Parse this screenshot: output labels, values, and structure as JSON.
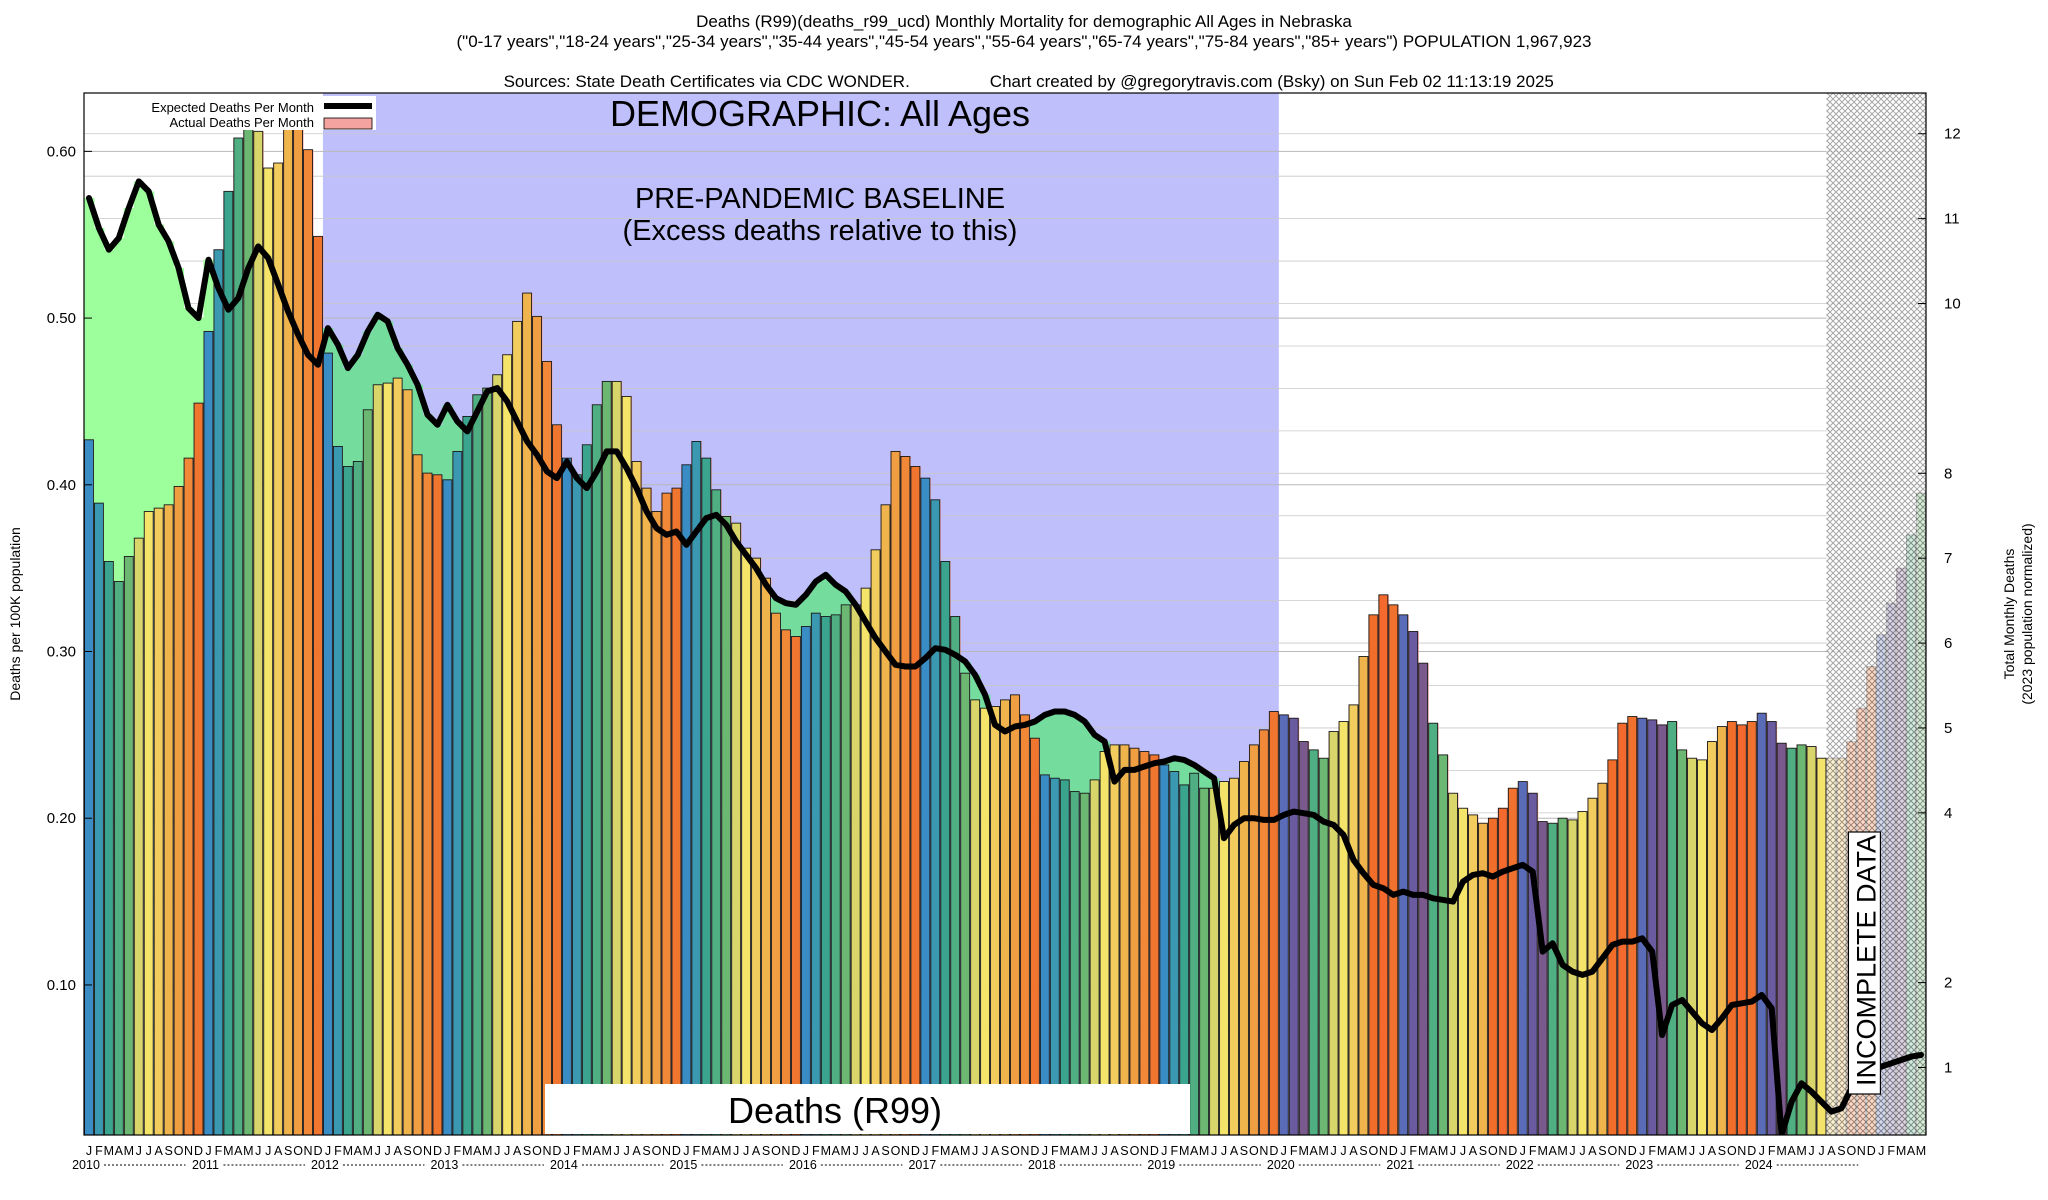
{
  "header": {
    "title_line1": "Deaths (R99)(deaths_r99_ucd) Monthly Mortality for demographic All Ages in Nebraska",
    "title_line2": "(\"0-17 years\",\"18-24 years\",\"25-34 years\",\"35-44 years\",\"45-54 years\",\"55-64 years\",\"65-74 years\",\"75-84 years\",\"85+ years\") POPULATION 1,967,923",
    "title_line3_left": "Sources: State Death Certificates via CDC WONDER.",
    "title_line3_right": "Chart created by @gregorytravis.com (Bsky) on Sun Feb 02 11:13:19 2025"
  },
  "chart_data": {
    "type": "bar",
    "ylabel": "Deaths per 100K population",
    "y2label_line1": "Total Monthly Deaths",
    "y2label_line2": "(2023 population normalized)",
    "ylim": [
      0.01,
      0.635
    ],
    "y2lim": [
      0.205,
      12.48
    ],
    "yticks": [
      "0.10",
      "0.20",
      "0.30",
      "0.40",
      "0.50",
      "0.60"
    ],
    "y2ticks": [
      "1",
      "2",
      "4",
      "5",
      "6",
      "7",
      "8",
      "10",
      "11",
      "12"
    ],
    "y2tick_values": [
      1,
      2,
      4,
      5,
      6,
      7,
      8,
      10,
      11,
      12
    ],
    "month_letters": [
      "J",
      "F",
      "M",
      "A",
      "M",
      "J",
      "J",
      "A",
      "S",
      "O",
      "N",
      "D"
    ],
    "years": [
      "2010",
      "2011",
      "2012",
      "2013",
      "2014",
      "2015",
      "2016",
      "2017",
      "2018",
      "2019",
      "2020",
      "2021",
      "2022",
      "2023",
      "2024"
    ],
    "legend": {
      "expected_label": "Expected Deaths Per Month",
      "actual_label": "Actual Deaths Per Month",
      "placement": "top-left"
    },
    "annotations": {
      "demographic": "DEMOGRAPHIC: All Ages",
      "baseline_line1": "PRE-PANDEMIC BASELINE",
      "baseline_line2": "(Excess deaths relative to this)",
      "cause": "Deaths (R99)",
      "incomplete": "INCOMPLETE DATA"
    },
    "baseline_period": [
      "2012-01",
      "2019-12"
    ],
    "incomplete_from": "2024-08",
    "colors": {
      "baseline_band": "#bfbffc",
      "deficit_fill": "#9cff9c",
      "deficit_fill_baseline": "#74dc9c",
      "excess_fill": "#f5a3a0",
      "expected_line": "#000000",
      "hatch": "#9a9a9a",
      "season_palette": [
        "#3d8ec4",
        "#3a9aaa",
        "#3aa890",
        "#5ab47a",
        "#c8c860",
        "#f0e060",
        "#f3d060",
        "#f2b848",
        "#f0a040",
        "#5a7cc4",
        "#7a5aa0",
        "#8c6a6a",
        "#b88a50",
        "#f09040",
        "#f07838",
        "#f46a2e"
      ]
    },
    "actual": [
      0.427,
      0.389,
      0.354,
      0.342,
      0.357,
      0.368,
      0.384,
      0.386,
      0.388,
      0.399,
      0.416,
      0.449,
      0.492,
      0.541,
      0.576,
      0.608,
      0.621,
      0.612,
      0.59,
      0.593,
      0.614,
      0.623,
      0.601,
      0.549,
      0.479,
      0.423,
      0.411,
      0.414,
      0.445,
      0.46,
      0.461,
      0.464,
      0.457,
      0.418,
      0.407,
      0.406,
      0.403,
      0.42,
      0.441,
      0.454,
      0.458,
      0.466,
      0.478,
      0.498,
      0.515,
      0.501,
      0.474,
      0.436,
      0.416,
      0.406,
      0.424,
      0.448,
      0.462,
      0.462,
      0.453,
      0.414,
      0.398,
      0.384,
      0.395,
      0.398,
      0.412,
      0.426,
      0.416,
      0.397,
      0.381,
      0.377,
      0.362,
      0.356,
      0.344,
      0.323,
      0.313,
      0.309,
      0.315,
      0.323,
      0.321,
      0.322,
      0.328,
      0.328,
      0.338,
      0.361,
      0.388,
      0.42,
      0.417,
      0.411,
      0.404,
      0.391,
      0.354,
      0.321,
      0.287,
      0.271,
      0.266,
      0.267,
      0.271,
      0.274,
      0.262,
      0.248,
      0.226,
      0.224,
      0.223,
      0.216,
      0.215,
      0.223,
      0.24,
      0.244,
      0.244,
      0.242,
      0.24,
      0.238,
      0.232,
      0.228,
      0.22,
      0.227,
      0.218,
      0.218,
      0.222,
      0.224,
      0.234,
      0.244,
      0.253,
      0.264,
      0.262,
      0.26,
      0.246,
      0.241,
      0.236,
      0.252,
      0.258,
      0.268,
      0.297,
      0.322,
      0.334,
      0.328,
      0.322,
      0.312,
      0.293,
      0.257,
      0.238,
      0.215,
      0.206,
      0.202,
      0.197,
      0.2,
      0.206,
      0.218,
      0.222,
      0.215,
      0.198,
      0.197,
      0.2,
      0.199,
      0.204,
      0.212,
      0.221,
      0.235,
      0.257,
      0.261,
      0.26,
      0.259,
      0.256,
      0.258,
      0.241,
      0.236,
      0.235,
      0.246,
      0.255,
      0.258,
      0.256,
      0.258,
      0.263,
      0.258,
      0.245,
      0.242,
      0.244,
      0.243,
      0.236,
      0.236,
      0.236,
      0.246,
      0.266,
      0.291,
      0.31,
      0.329,
      0.35,
      0.37,
      0.395
    ],
    "expected": [
      0.572,
      0.554,
      0.541,
      0.548,
      0.566,
      0.582,
      0.576,
      0.556,
      0.546,
      0.53,
      0.506,
      0.5,
      0.535,
      0.518,
      0.505,
      0.512,
      0.53,
      0.543,
      0.536,
      0.52,
      0.504,
      0.49,
      0.478,
      0.472,
      0.494,
      0.484,
      0.47,
      0.478,
      0.492,
      0.502,
      0.498,
      0.482,
      0.472,
      0.46,
      0.442,
      0.436,
      0.448,
      0.438,
      0.432,
      0.444,
      0.456,
      0.458,
      0.45,
      0.438,
      0.426,
      0.418,
      0.408,
      0.404,
      0.414,
      0.404,
      0.398,
      0.408,
      0.42,
      0.42,
      0.41,
      0.398,
      0.384,
      0.374,
      0.37,
      0.372,
      0.364,
      0.372,
      0.38,
      0.382,
      0.376,
      0.366,
      0.358,
      0.35,
      0.34,
      0.332,
      0.329,
      0.328,
      0.334,
      0.342,
      0.346,
      0.34,
      0.336,
      0.328,
      0.318,
      0.308,
      0.3,
      0.292,
      0.291,
      0.291,
      0.296,
      0.302,
      0.301,
      0.298,
      0.294,
      0.286,
      0.274,
      0.256,
      0.252,
      0.255,
      0.256,
      0.258,
      0.262,
      0.264,
      0.264,
      0.262,
      0.258,
      0.25,
      0.246,
      0.222,
      0.229,
      0.229,
      0.231,
      0.233,
      0.234,
      0.236,
      0.235,
      0.232,
      0.228,
      0.224,
      0.188,
      0.196,
      0.2,
      0.2,
      0.199,
      0.199,
      0.202,
      0.204,
      0.203,
      0.202,
      0.198,
      0.196,
      0.19,
      0.175,
      0.167,
      0.16,
      0.158,
      0.154,
      0.156,
      0.154,
      0.154,
      0.152,
      0.151,
      0.15,
      0.162,
      0.166,
      0.167,
      0.165,
      0.168,
      0.17,
      0.172,
      0.168,
      0.12,
      0.125,
      0.112,
      0.108,
      0.106,
      0.108,
      0.116,
      0.124,
      0.126,
      0.126,
      0.128,
      0.12,
      0.07,
      0.088,
      0.091,
      0.084,
      0.077,
      0.073,
      0.08,
      0.088,
      0.089,
      0.09,
      0.094,
      0.086,
      0.01,
      0.03,
      0.041,
      0.036,
      0.03,
      0.024,
      0.026,
      0.038,
      0.046,
      0.049,
      0.051,
      0.053,
      0.055,
      0.057,
      0.058
    ]
  }
}
